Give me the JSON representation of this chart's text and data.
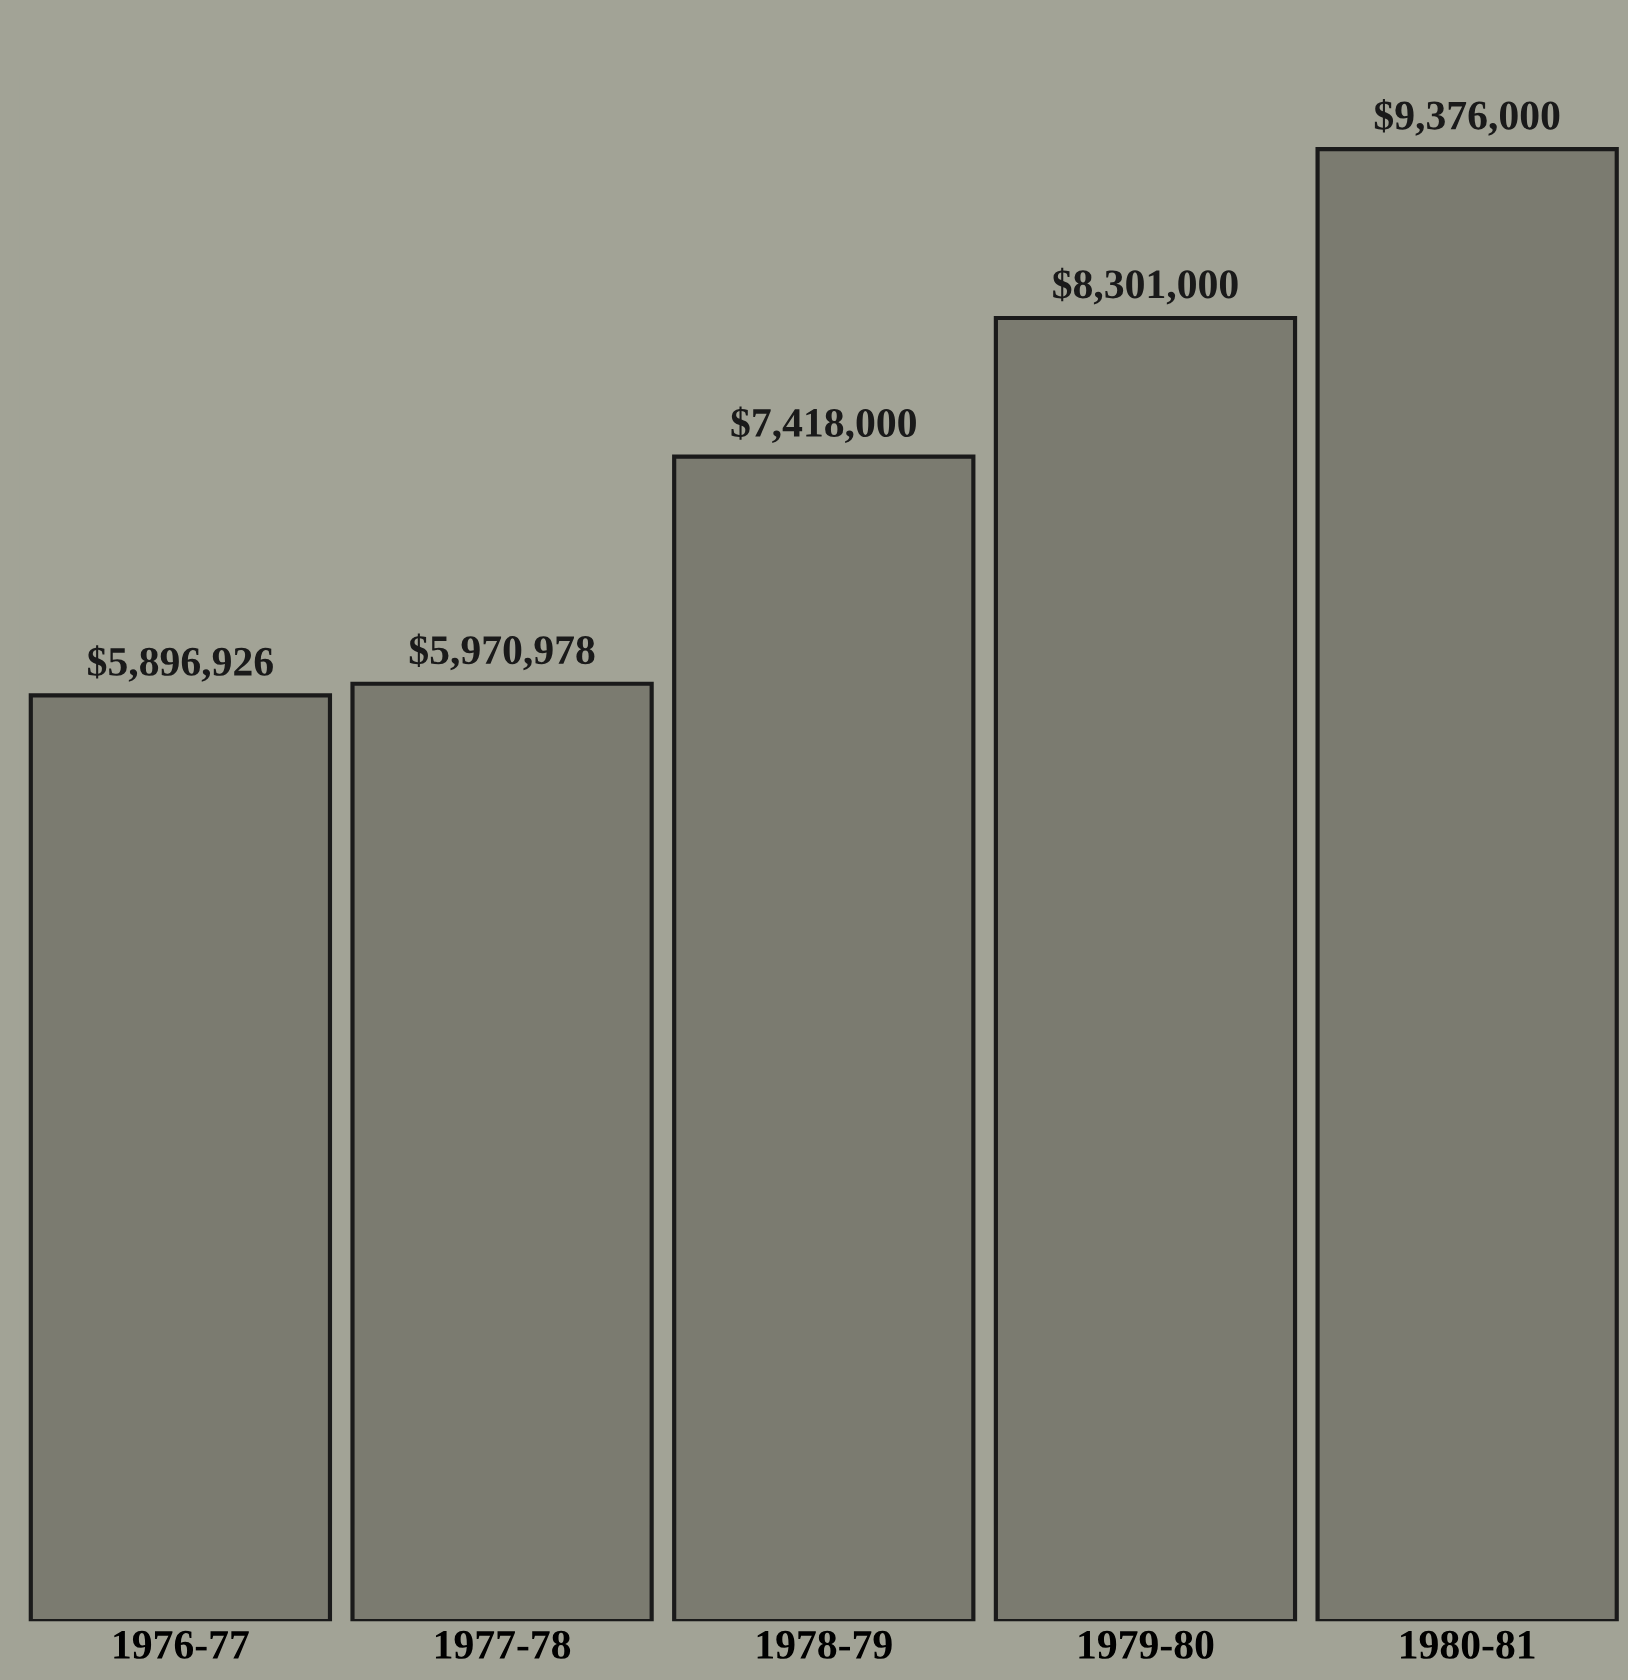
{
  "chart_data": {
    "type": "bar",
    "categories": [
      "1976-77",
      "1977-78",
      "1978-79",
      "1979-80",
      "1980-81"
    ],
    "values": [
      5896926,
      5970978,
      7418000,
      8301000,
      9376000
    ],
    "value_labels": [
      "$5,896,926",
      "$5,970,978",
      "$7,418,000",
      "$8,301,000",
      "$9,376,000"
    ],
    "color": "#7b7b70",
    "grid": false,
    "legend": false
  }
}
